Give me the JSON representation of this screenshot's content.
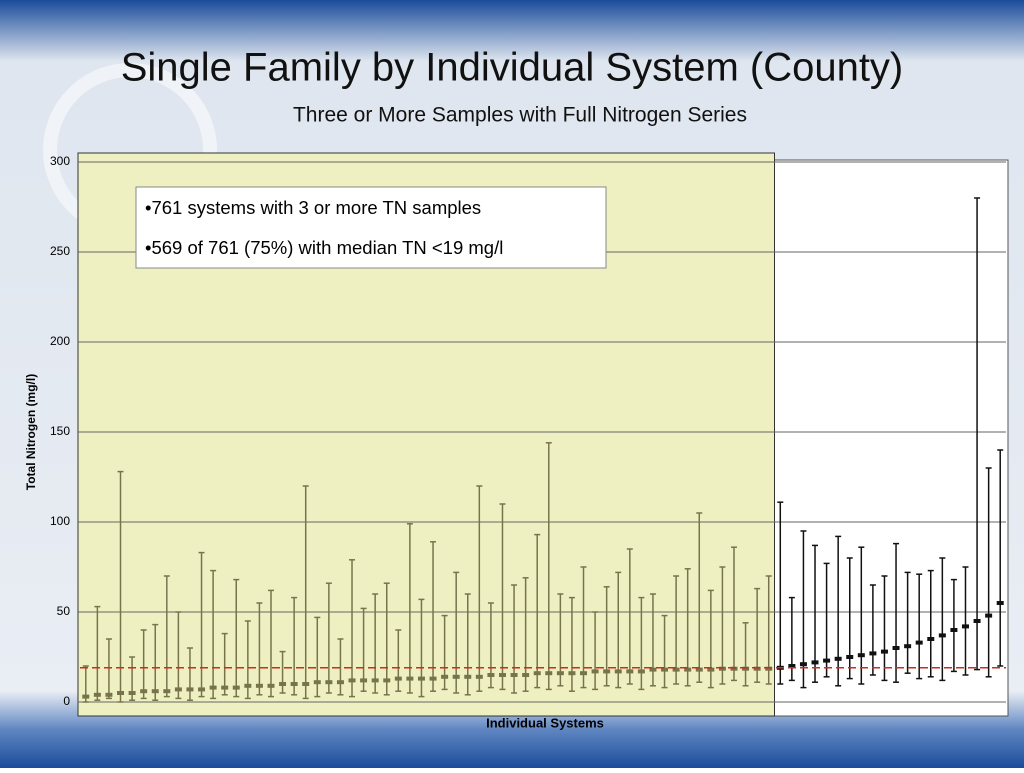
{
  "chart_data": {
    "type": "range",
    "title": "Single Family by Individual System (County)",
    "subtitle": "Three or More Samples with Full Nitrogen Series",
    "ylabel": "Total Nitrogen (mg/l)",
    "xlabel": "Individual Systems",
    "annotations": [
      "•761 systems with 3 or more TN samples",
      "•569 of 761 (75%) with median TN <19 mg/l"
    ],
    "ylim": [
      0,
      300
    ],
    "yticks": [
      0,
      50,
      100,
      150,
      200,
      250,
      300
    ],
    "grid": true,
    "reference_line": 19,
    "reference_color": "#d22a1e",
    "color": "#77744c",
    "color_above": "#111111",
    "highlight_color": "#eef0c2",
    "low": [
      0,
      1,
      2,
      0,
      1,
      2,
      1,
      3,
      2,
      1,
      3,
      2,
      4,
      3,
      2,
      4,
      3,
      5,
      4,
      2,
      3,
      5,
      4,
      3,
      6,
      5,
      4,
      6,
      5,
      3,
      6,
      7,
      5,
      4,
      6,
      8,
      7,
      5,
      6,
      8,
      7,
      9,
      6,
      8,
      7,
      9,
      8,
      10,
      7,
      9,
      8,
      10,
      9,
      11,
      8,
      10,
      12,
      9,
      11,
      10,
      10,
      12,
      8,
      11,
      14,
      9,
      13,
      10,
      15,
      12,
      11,
      16,
      13,
      14,
      12,
      17,
      15,
      18,
      14,
      20
    ],
    "median": [
      3,
      4,
      4,
      5,
      5,
      6,
      6,
      6,
      7,
      7,
      7,
      8,
      8,
      8,
      9,
      9,
      9,
      10,
      10,
      10,
      11,
      11,
      11,
      12,
      12,
      12,
      12,
      13,
      13,
      13,
      13,
      14,
      14,
      14,
      14,
      15,
      15,
      15,
      15,
      16,
      16,
      16,
      16,
      16,
      17,
      17,
      17,
      17,
      17,
      18,
      18,
      18,
      18,
      18,
      18,
      18.5,
      18.5,
      18.5,
      18.5,
      18.5,
      19,
      20,
      21,
      22,
      23,
      24,
      25,
      26,
      27,
      28,
      30,
      31,
      33,
      35,
      37,
      40,
      42,
      45,
      48,
      55
    ],
    "high": [
      20,
      53,
      35,
      128,
      25,
      40,
      43,
      70,
      50,
      30,
      83,
      73,
      38,
      68,
      45,
      55,
      62,
      28,
      58,
      120,
      47,
      66,
      35,
      79,
      52,
      60,
      66,
      40,
      99,
      57,
      89,
      48,
      72,
      60,
      120,
      55,
      110,
      65,
      69,
      93,
      144,
      60,
      58,
      75,
      50,
      64,
      72,
      85,
      58,
      60,
      48,
      70,
      74,
      105,
      62,
      75,
      86,
      44,
      63,
      70,
      111,
      58,
      95,
      87,
      77,
      92,
      80,
      86,
      65,
      70,
      88,
      72,
      71,
      73,
      80,
      68,
      75,
      280,
      130,
      140
    ]
  }
}
